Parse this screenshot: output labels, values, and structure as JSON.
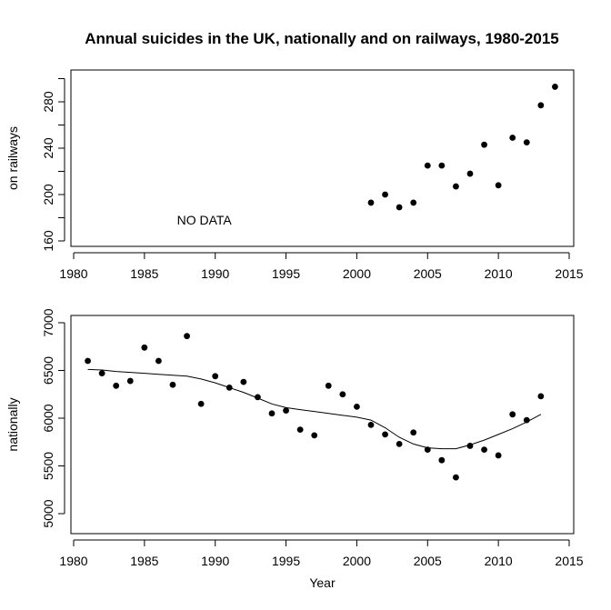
{
  "chart_data": [
    {
      "type": "scatter",
      "title": "Annual suicides in the UK, nationally and on railways, 1980-2015",
      "xlabel": "",
      "ylabel": "on railways",
      "xlim": [
        1980,
        2015
      ],
      "ylim": [
        155,
        300
      ],
      "x_ticks": [
        1980,
        1985,
        1990,
        1995,
        2000,
        2005,
        2010,
        2015
      ],
      "y_ticks": [
        160,
        180,
        200,
        220,
        240,
        260,
        280,
        300
      ],
      "y_tick_labels": [
        {
          "value": 160,
          "label": "160"
        },
        {
          "value": 200,
          "label": "200"
        },
        {
          "value": 240,
          "label": "240"
        },
        {
          "value": 280,
          "label": "280"
        }
      ],
      "grid": false,
      "annotations": [
        {
          "text": "NO DATA",
          "x": 1990,
          "y": 178
        }
      ],
      "series": [
        {
          "name": "railway suicides",
          "marker": "filled-circle",
          "color": "#000000",
          "x": [
            2001,
            2002,
            2003,
            2004,
            2005,
            2006,
            2007,
            2008,
            2009,
            2010,
            2011,
            2012,
            2013,
            2014
          ],
          "y": [
            193,
            200,
            189,
            193,
            225,
            225,
            207,
            218,
            243,
            208,
            249,
            245,
            277,
            293
          ]
        }
      ]
    },
    {
      "type": "scatter",
      "title": "",
      "xlabel": "Year",
      "ylabel": "nationally",
      "xlim": [
        1980,
        2015
      ],
      "ylim": [
        4960,
        7040
      ],
      "x_ticks": [
        1980,
        1985,
        1990,
        1995,
        2000,
        2005,
        2010,
        2015
      ],
      "y_ticks": [
        5000,
        5500,
        6000,
        6500,
        7000
      ],
      "y_tick_labels": [
        {
          "value": 5000,
          "label": "5000"
        },
        {
          "value": 5500,
          "label": "5500"
        },
        {
          "value": 6000,
          "label": "6000"
        },
        {
          "value": 6500,
          "label": "6500"
        },
        {
          "value": 7000,
          "label": "7000"
        }
      ],
      "grid": false,
      "series": [
        {
          "name": "national suicides",
          "marker": "filled-circle",
          "color": "#000000",
          "x": [
            1981,
            1982,
            1983,
            1984,
            1985,
            1986,
            1987,
            1988,
            1989,
            1990,
            1991,
            1992,
            1993,
            1994,
            1995,
            1996,
            1997,
            1998,
            1999,
            2000,
            2001,
            2002,
            2003,
            2004,
            2005,
            2006,
            2007,
            2008,
            2009,
            2010,
            2011,
            2012,
            2013
          ],
          "y": [
            6600,
            6470,
            6340,
            6390,
            6740,
            6600,
            6350,
            6860,
            6150,
            6440,
            6320,
            6380,
            6220,
            6050,
            6080,
            5880,
            5820,
            6340,
            6250,
            6120,
            5930,
            5830,
            5730,
            5850,
            5670,
            5560,
            5380,
            5710,
            5670,
            5610,
            6040,
            5980,
            6230
          ]
        },
        {
          "name": "smoothed trend",
          "type": "line",
          "color": "#000000",
          "x": [
            1981,
            1982,
            1983,
            1984,
            1985,
            1986,
            1987,
            1988,
            1989,
            1990,
            1991,
            1992,
            1993,
            1994,
            1995,
            1996,
            1997,
            1998,
            1999,
            2000,
            2001,
            2002,
            2003,
            2004,
            2005,
            2006,
            2007,
            2008,
            2009,
            2010,
            2011,
            2012,
            2013
          ],
          "y": [
            6510,
            6505,
            6490,
            6480,
            6470,
            6460,
            6450,
            6440,
            6410,
            6370,
            6320,
            6270,
            6210,
            6150,
            6110,
            6090,
            6070,
            6050,
            6030,
            6010,
            5980,
            5900,
            5800,
            5730,
            5690,
            5680,
            5680,
            5720,
            5770,
            5830,
            5890,
            5960,
            6040
          ]
        }
      ]
    }
  ]
}
